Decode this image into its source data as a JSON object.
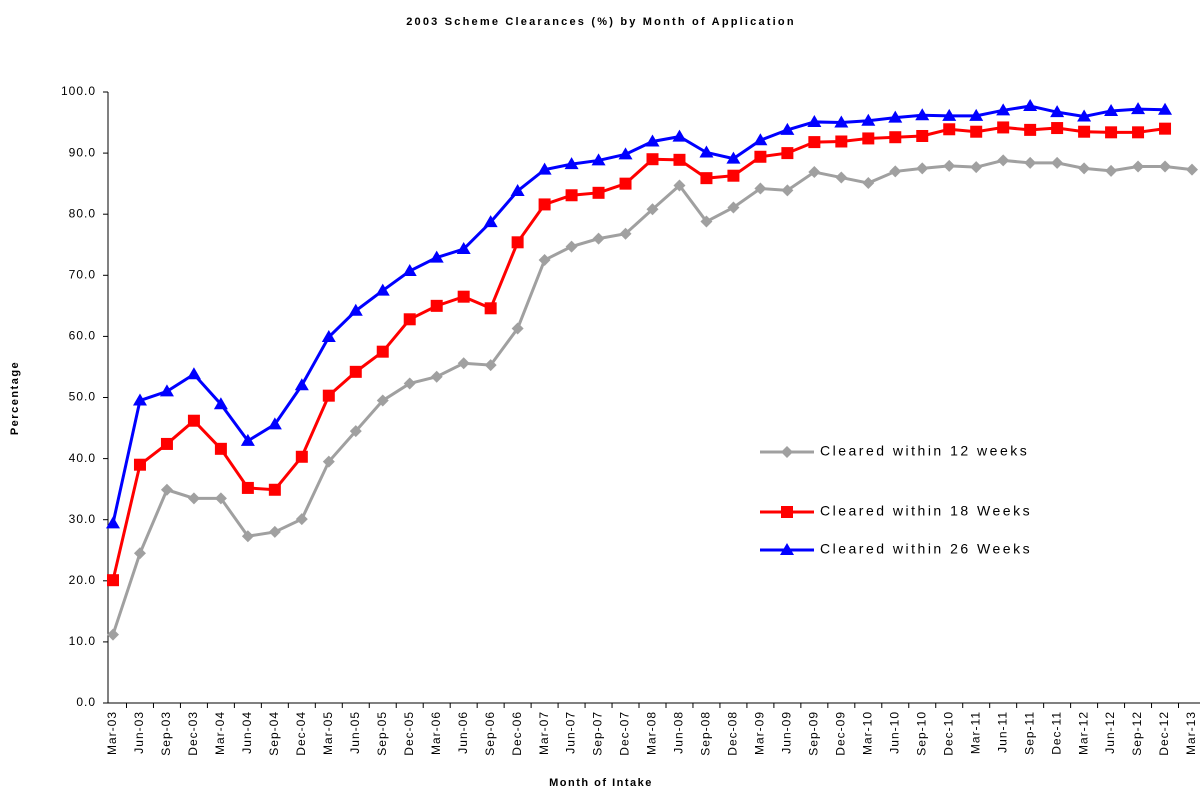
{
  "chart_data": {
    "type": "line",
    "title": "2003 Scheme Clearances (%) by Month of Application",
    "x_label": "Month of Intake",
    "y_label": "Percentage",
    "categories": [
      "Mar-03",
      "Jun-03",
      "Sep-03",
      "Dec-03",
      "Mar-04",
      "Jun-04",
      "Sep-04",
      "Dec-04",
      "Mar-05",
      "Jun-05",
      "Sep-05",
      "Dec-05",
      "Mar-06",
      "Jun-06",
      "Sep-06",
      "Dec-06",
      "Mar-07",
      "Jun-07",
      "Sep-07",
      "Dec-07",
      "Mar-08",
      "Jun-08",
      "Sep-08",
      "Dec-08",
      "Mar-09",
      "Jun-09",
      "Sep-09",
      "Dec-09",
      "Mar-10",
      "Jun-10",
      "Sep-10",
      "Dec-10",
      "Mar-11",
      "Jun-11",
      "Sep-11",
      "Dec-11",
      "Mar-12",
      "Jun-12",
      "Sep-12",
      "Dec-12",
      "Mar-13"
    ],
    "series": [
      {
        "name": "Cleared within 12 weeks",
        "color": "#a0a0a0",
        "marker": "diamond",
        "values": [
          11.2,
          24.5,
          34.9,
          33.5,
          33.5,
          27.3,
          28.0,
          30.1,
          39.5,
          44.5,
          49.5,
          52.3,
          53.4,
          55.6,
          55.3,
          61.3,
          72.5,
          74.7,
          76.0,
          76.8,
          80.8,
          84.7,
          78.8,
          81.1,
          84.2,
          83.9,
          86.9,
          86.0,
          85.1,
          87.0,
          87.5,
          87.9,
          87.7,
          88.8,
          88.4,
          88.4,
          87.5,
          87.1,
          87.8,
          87.8,
          87.3
        ]
      },
      {
        "name": "Cleared within 18 Weeks",
        "color": "#ff0000",
        "marker": "square",
        "values": [
          20.1,
          39.0,
          42.4,
          46.2,
          41.6,
          35.2,
          34.9,
          40.3,
          50.3,
          54.2,
          57.5,
          62.8,
          65.0,
          66.5,
          64.6,
          75.4,
          81.6,
          83.1,
          83.5,
          85.0,
          89.0,
          88.9,
          85.9,
          86.3,
          89.4,
          90.0,
          91.8,
          91.9,
          92.4,
          92.6,
          92.8,
          93.9,
          93.5,
          94.2,
          93.8,
          94.1,
          93.5,
          93.4,
          93.4,
          94.0,
          null
        ]
      },
      {
        "name": "Cleared within 26 Weeks",
        "color": "#0000ff",
        "marker": "triangle",
        "values": [
          29.4,
          49.5,
          51.0,
          53.8,
          48.9,
          42.9,
          45.6,
          52.0,
          59.9,
          64.2,
          67.5,
          70.7,
          72.9,
          74.3,
          78.7,
          83.8,
          87.3,
          88.2,
          88.8,
          89.8,
          91.9,
          92.7,
          90.1,
          89.1,
          92.1,
          93.8,
          95.1,
          95.0,
          95.3,
          95.8,
          96.2,
          96.1,
          96.1,
          97.0,
          97.7,
          96.7,
          96.0,
          96.9,
          97.2,
          97.1,
          null
        ]
      }
    ],
    "ylim": [
      0,
      100
    ],
    "yticks": [
      {
        "value": 0,
        "label": "0.0"
      },
      {
        "value": 10,
        "label": "10.0"
      },
      {
        "value": 20,
        "label": "20.0"
      },
      {
        "value": 30,
        "label": "30.0"
      },
      {
        "value": 40,
        "label": "40.0"
      },
      {
        "value": 50,
        "label": "50.0"
      },
      {
        "value": 60,
        "label": "60.0"
      },
      {
        "value": 70,
        "label": "70.0"
      },
      {
        "value": 80,
        "label": "80.0"
      },
      {
        "value": 90,
        "label": "90.0"
      },
      {
        "value": 100,
        "label": "100.0"
      }
    ],
    "grid": false,
    "legend": "right"
  }
}
